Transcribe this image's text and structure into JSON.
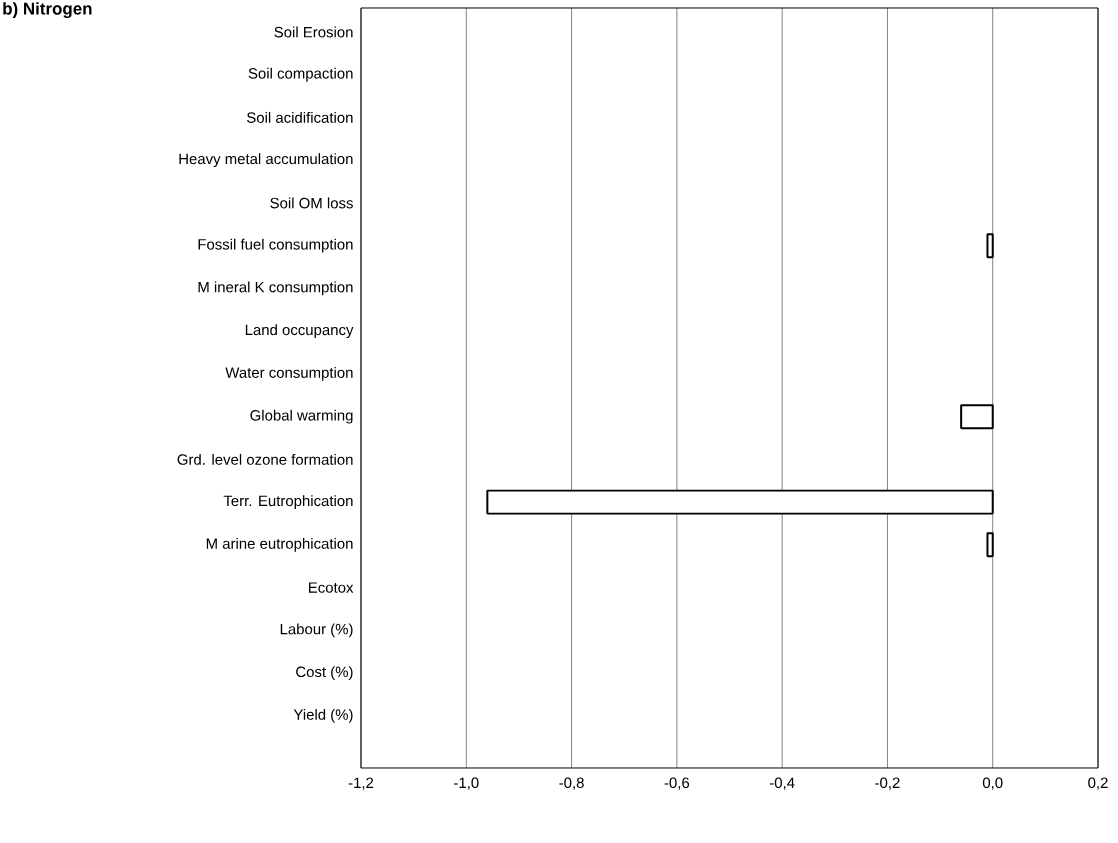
{
  "chart_data": {
    "type": "bar",
    "orientation": "horizontal",
    "title": "b) Nitrogen",
    "categories": [
      "Soil Erosion",
      "Soil compaction",
      "Soil acidification",
      "Heavy metal accumulation",
      "Soil OM  loss",
      "Fossil fuel consumption",
      "M ineral K consumption",
      "Land occupancy",
      "Water consumption",
      "Global warming",
      "Grd. level ozone formation",
      "Terr. Eutrophication",
      "M arine eutrophication",
      "Ecotox",
      "Labour (%)",
      "Cost (%)",
      "Yield (%)"
    ],
    "values": [
      null,
      null,
      null,
      null,
      null,
      -0.01,
      null,
      null,
      null,
      -0.06,
      null,
      -0.96,
      -0.01,
      null,
      null,
      null,
      null
    ],
    "color": "#ffffff",
    "xlim": [
      -1.2,
      0.2
    ],
    "xticks": [
      {
        "value": -1.2,
        "label": "-1,2"
      },
      {
        "value": -1.0,
        "label": "-1,0"
      },
      {
        "value": -0.8,
        "label": "-0,8"
      },
      {
        "value": -0.6,
        "label": "-0,6"
      },
      {
        "value": -0.4,
        "label": "-0,4"
      },
      {
        "value": -0.2,
        "label": "-0,2"
      },
      {
        "value": 0.0,
        "label": "0,0"
      },
      {
        "value": 0.2,
        "label": "0,2"
      }
    ],
    "grid": "x"
  }
}
